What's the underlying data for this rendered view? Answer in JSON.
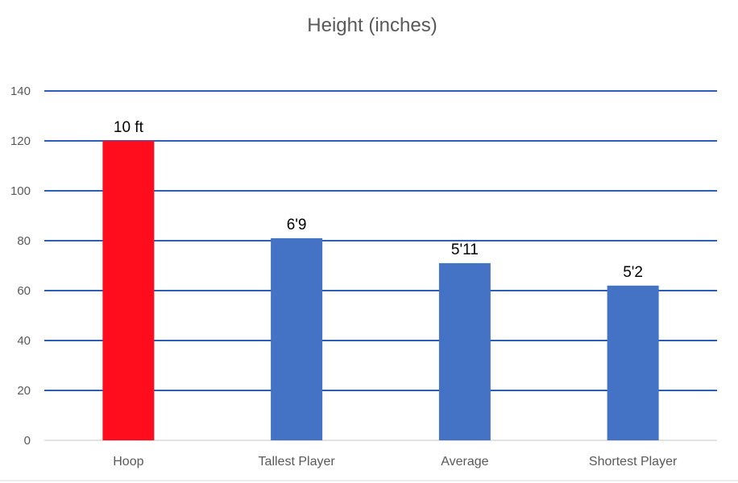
{
  "chart_data": {
    "type": "bar",
    "title": "Height (inches)",
    "xlabel": "",
    "ylabel": "",
    "categories": [
      "Hoop",
      "Tallest Player",
      "Average",
      "Shortest Player"
    ],
    "values": [
      120,
      81,
      71,
      62
    ],
    "data_labels": [
      "10 ft",
      "6'9",
      "5'11",
      "5'2"
    ],
    "bar_colors": [
      "#FF0D1C",
      "#4472C4",
      "#4472C4",
      "#4472C4"
    ],
    "ylim": [
      0,
      140
    ],
    "yticks": [
      0,
      20,
      40,
      60,
      80,
      100,
      120,
      140
    ],
    "grid": true,
    "grid_color": "#2E5FB8",
    "legend": "none"
  }
}
